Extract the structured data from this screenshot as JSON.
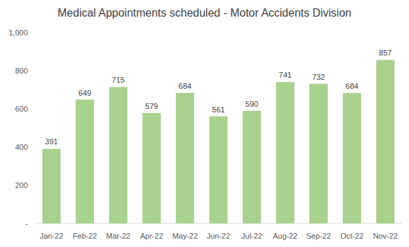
{
  "chart_data": {
    "type": "bar",
    "title": "Medical Appointments scheduled - Motor Accidents Division",
    "categories": [
      "Jan-22",
      "Feb-22",
      "Mar-22",
      "Apr-22",
      "May-22",
      "Jun-22",
      "Jul-22",
      "Aug-22",
      "Sep-22",
      "Oct-22",
      "Nov-22"
    ],
    "values": [
      391,
      649,
      715,
      579,
      684,
      561,
      590,
      741,
      732,
      684,
      857
    ],
    "color": "#a9d18e",
    "ylim": [
      0,
      1000
    ],
    "yticks": [
      {
        "value": 0,
        "label": "-"
      },
      200,
      400,
      600,
      800,
      {
        "value": 1000,
        "label": "1,000"
      }
    ],
    "grid": false,
    "data_labels": true
  }
}
